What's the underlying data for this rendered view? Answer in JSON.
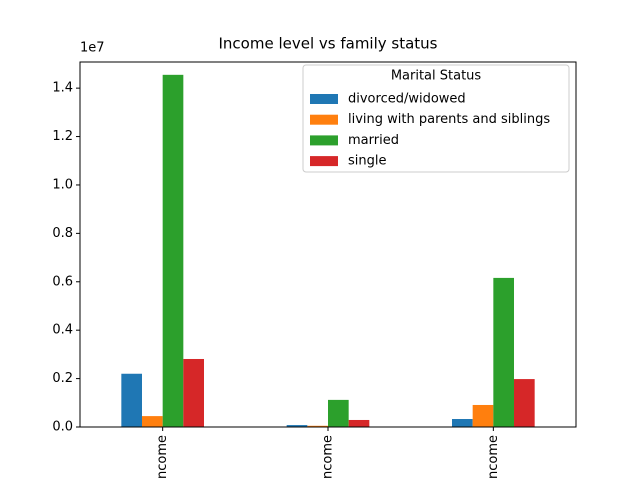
{
  "chart_data": {
    "type": "bar",
    "title": "Income level vs family status",
    "y_offset_label": "1e7",
    "categories": [
      "income",
      "income",
      "income"
    ],
    "legend_title": "Marital Status",
    "legend_loc": "upper right",
    "series": [
      {
        "name": "divorced/widowed",
        "color": "#1f77b4",
        "values": [
          0.22,
          0.008,
          0.033
        ]
      },
      {
        "name": "living with parents and siblings",
        "color": "#ff7f0e",
        "values": [
          0.045,
          0.005,
          0.091
        ]
      },
      {
        "name": "married",
        "color": "#2ca02c",
        "values": [
          1.455,
          0.112,
          0.616
        ]
      },
      {
        "name": "single",
        "color": "#d62728",
        "values": [
          0.281,
          0.029,
          0.198
        ]
      }
    ],
    "ylim": [
      0,
      1.508
    ],
    "yticks": [
      {
        "value": 0,
        "label": "0.0"
      },
      {
        "value": 0.2,
        "label": "0.2"
      },
      {
        "value": 0.4,
        "label": "0.4"
      },
      {
        "value": 0.6,
        "label": "0.6"
      },
      {
        "value": 0.8,
        "label": "0.8"
      },
      {
        "value": 1,
        "label": "1.0"
      },
      {
        "value": 1.2,
        "label": "1.2"
      },
      {
        "value": 1.4,
        "label": "1.4"
      }
    ]
  }
}
